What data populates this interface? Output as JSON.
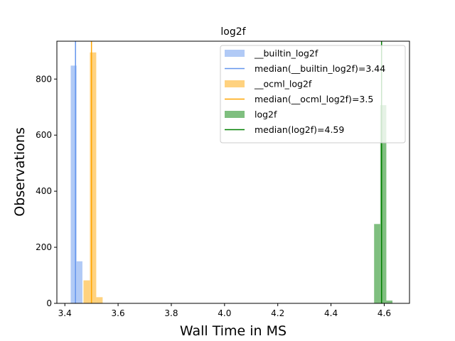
{
  "chart_data": {
    "type": "histogram",
    "title": "log2f",
    "xlabel": "Wall Time in MS",
    "ylabel": "Observations",
    "xlim": [
      3.37,
      4.695
    ],
    "ylim": [
      0,
      935
    ],
    "x_ticks": [
      3.4,
      3.6,
      3.8,
      4.0,
      4.2,
      4.4,
      4.6
    ],
    "x_tick_labels": [
      "3.4",
      "3.6",
      "3.8",
      "4.0",
      "4.2",
      "4.4",
      "4.6"
    ],
    "y_ticks": [
      0,
      200,
      400,
      600,
      800
    ],
    "y_tick_labels": [
      "0",
      "200",
      "400",
      "600",
      "800"
    ],
    "legend_position": "upper-right",
    "series": [
      {
        "name": "__builtin_log2f",
        "color": "#6495ED",
        "alpha": 0.5,
        "bins": [
          {
            "x0": 3.422,
            "x1": 3.444,
            "count": 848
          },
          {
            "x0": 3.444,
            "x1": 3.466,
            "count": 150
          }
        ],
        "median": 3.44,
        "median_label": "median(__builtin_log2f)=3.44"
      },
      {
        "name": "__ocml_log2f",
        "color": "#FFA500",
        "alpha": 0.5,
        "bins": [
          {
            "x0": 3.47,
            "x1": 3.494,
            "count": 82
          },
          {
            "x0": 3.494,
            "x1": 3.518,
            "count": 895
          },
          {
            "x0": 3.518,
            "x1": 3.542,
            "count": 22
          }
        ],
        "median": 3.5,
        "median_label": "median(__ocml_log2f)=3.5"
      },
      {
        "name": "log2f",
        "color": "#008000",
        "alpha": 0.5,
        "bins": [
          {
            "x0": 4.562,
            "x1": 4.585,
            "count": 283
          },
          {
            "x0": 4.585,
            "x1": 4.608,
            "count": 707
          },
          {
            "x0": 4.608,
            "x1": 4.631,
            "count": 10
          }
        ],
        "median": 4.59,
        "median_label": "median(log2f)=4.59"
      }
    ]
  }
}
